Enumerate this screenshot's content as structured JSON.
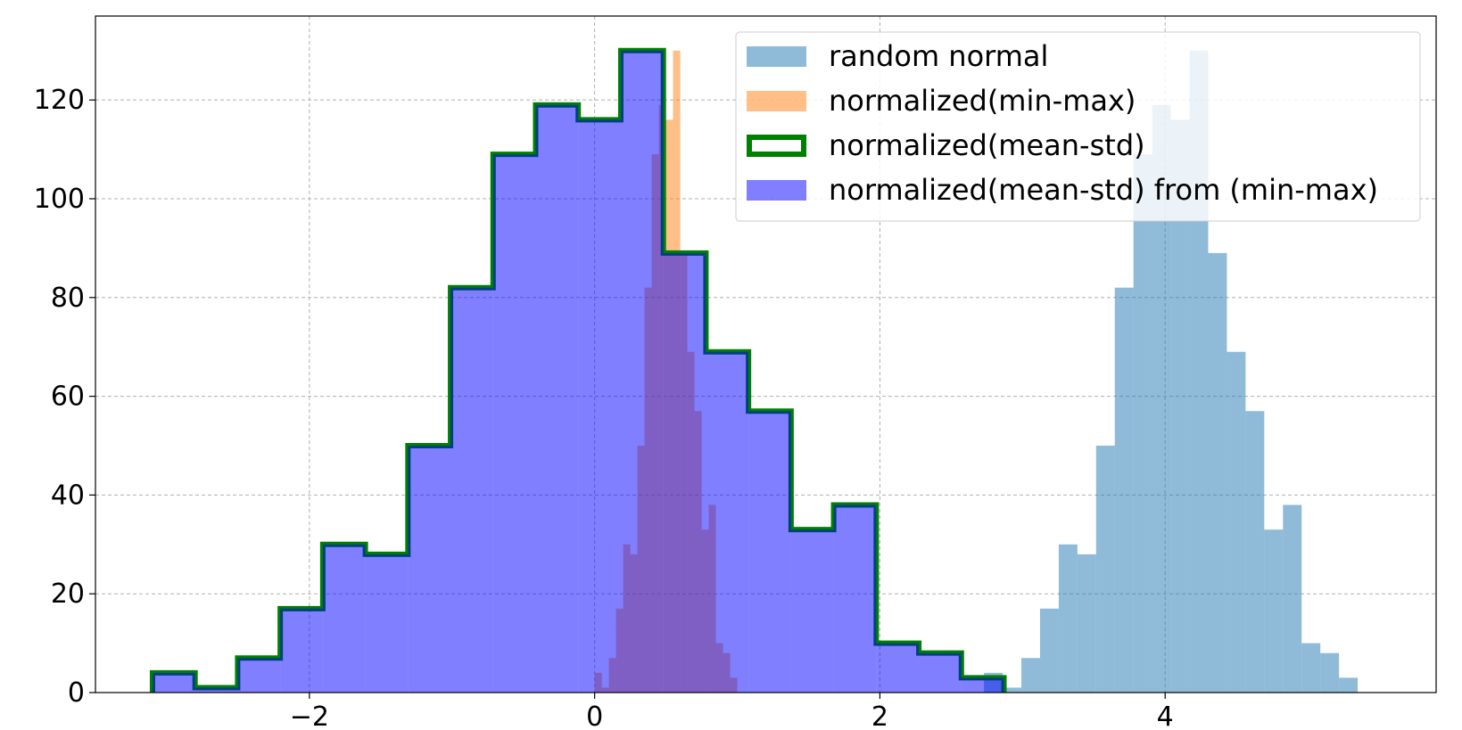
{
  "chart_data": {
    "type": "histogram",
    "title": "",
    "xlabel": "",
    "ylabel": "",
    "xlim": [
      -3.5,
      5.9
    ],
    "ylim": [
      0,
      137
    ],
    "grid": true,
    "legend_position": "top-right",
    "x_ticks": [
      -2,
      0,
      2,
      4
    ],
    "x_tick_labels": [
      "−2",
      "0",
      "2",
      "4"
    ],
    "y_ticks": [
      0,
      20,
      40,
      60,
      80,
      100,
      120
    ],
    "y_tick_labels": [
      "0",
      "20",
      "40",
      "60",
      "80",
      "100",
      "120"
    ],
    "counts": [
      4,
      1,
      7,
      17,
      30,
      28,
      50,
      82,
      109,
      119,
      116,
      130,
      89,
      69,
      57,
      33,
      38,
      10,
      8,
      3
    ],
    "series": [
      {
        "name": "random normal",
        "style": "filled",
        "color": "#1f77b4",
        "alpha": 0.5,
        "x_start": 2.73,
        "x_end": 5.35
      },
      {
        "name": "normalized(min-max)",
        "style": "filled",
        "color": "#ff7f0e",
        "alpha": 0.5,
        "x_start": 0.0,
        "x_end": 1.0
      },
      {
        "name": "normalized(mean-std)",
        "style": "step-outline",
        "color": "#008000",
        "alpha": 1.0,
        "x_start": -3.1,
        "x_end": 2.87
      },
      {
        "name": "normalized(mean-std) from (min-max)",
        "style": "filled",
        "color": "#0000ff",
        "alpha": 0.5,
        "x_start": -3.1,
        "x_end": 2.87
      }
    ]
  }
}
